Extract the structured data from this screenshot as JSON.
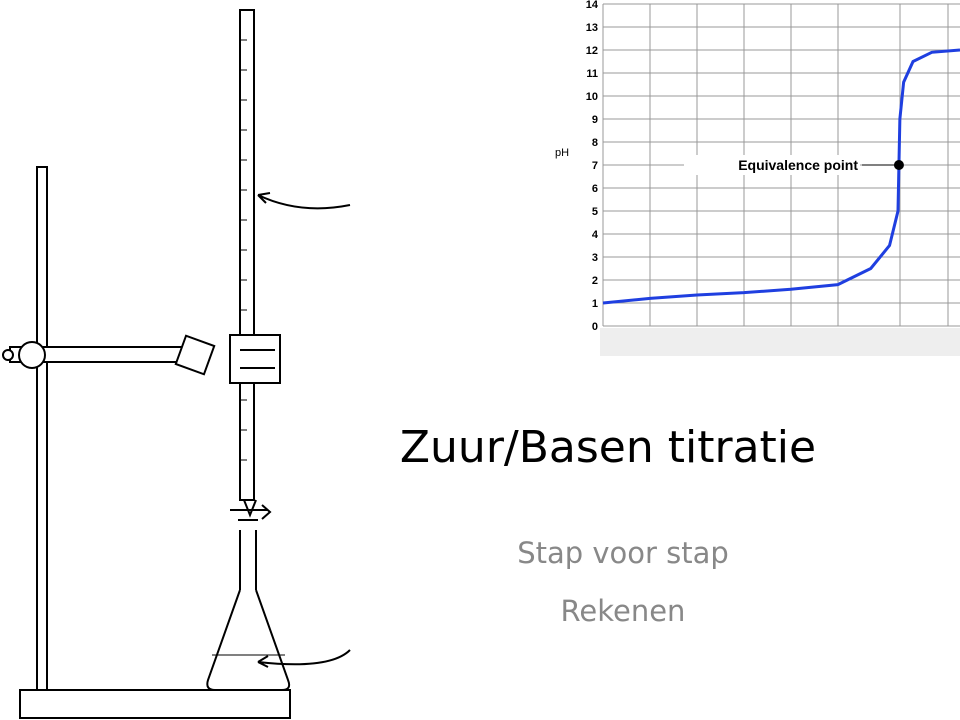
{
  "slide": {
    "title": "Zuur/Basen titratie",
    "subtitle_lines": [
      "Stap voor stap",
      "Rekenen"
    ]
  },
  "chart_data": {
    "type": "line",
    "y_label": "pH",
    "color": "#1f3fe0",
    "x": [
      0,
      1,
      2,
      3,
      4,
      5,
      5.7,
      6.1,
      6.28,
      6.3,
      6.32,
      6.4,
      6.6,
      7,
      7.6
    ],
    "values": [
      1.0,
      1.2,
      1.35,
      1.45,
      1.6,
      1.8,
      2.5,
      3.5,
      5,
      7,
      9,
      10.6,
      11.5,
      11.9,
      12
    ],
    "xlim": [
      0,
      7.6
    ],
    "ylim": [
      0,
      14
    ],
    "yticks": [
      0,
      1,
      2,
      3,
      4,
      5,
      6,
      7,
      8,
      9,
      10,
      11,
      12,
      13,
      14
    ],
    "grid": true,
    "equivalence_point": {
      "label": "Equivalence point",
      "x": 6.3,
      "y": 7
    }
  }
}
